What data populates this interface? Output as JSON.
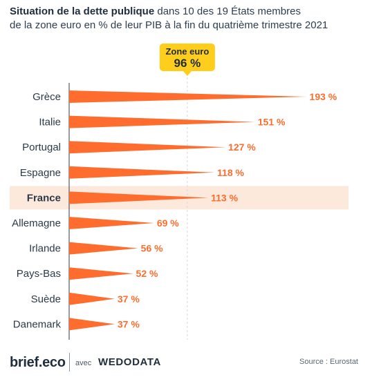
{
  "title": {
    "bold": "Situation de la dette publique",
    "line1_rest": " dans 10 des 19 États membres",
    "line2": "de la zone euro en % de leur PIB à la fin du quatrième trimestre 2021"
  },
  "chart_data": {
    "type": "bar",
    "title": "Situation de la dette publique dans 10 des 19 États membres de la zone euro en % de leur PIB à la fin du quatrième trimestre 2021",
    "categories": [
      "Grèce",
      "Italie",
      "Portugal",
      "Espagne",
      "France",
      "Allemagne",
      "Irlande",
      "Pays-Bas",
      "Suède",
      "Danemark"
    ],
    "values": [
      193,
      151,
      127,
      118,
      113,
      69,
      56,
      52,
      37,
      37
    ],
    "value_labels": [
      "193 %",
      "151 %",
      "127 %",
      "118 %",
      "113 %",
      "69 %",
      "56 %",
      "52 %",
      "37 %",
      "37 %"
    ],
    "highlight": "France",
    "reference": {
      "label": "Zone euro",
      "value": 96,
      "value_label": "96 %"
    },
    "unit": "% du PIB",
    "bar_color": "#ff6d2e",
    "label_color": "#ff6d2e",
    "highlight_color": "#fde8dc",
    "reference_box_color": "#ffcd1c"
  },
  "footer": {
    "brand": "brief.eco",
    "with": "avec",
    "partner": "WEDODATA",
    "source": "Source : Eurostat"
  }
}
